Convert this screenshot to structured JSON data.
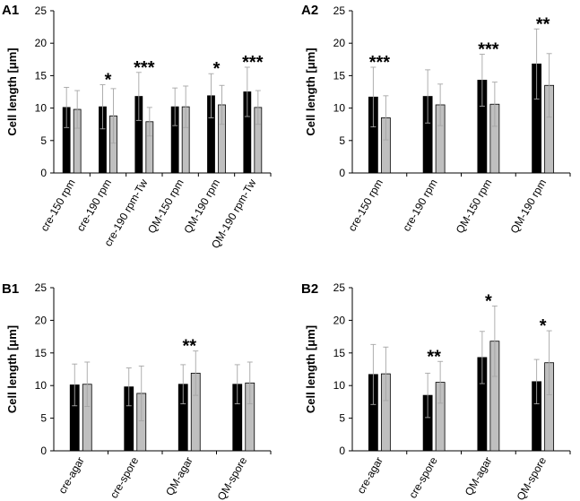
{
  "figure": {
    "ylabel_prefix": "Cell length [",
    "ylabel_unit": "μm",
    "ylabel_suffix": "]"
  },
  "colors": {
    "series1": "#000000",
    "series2": "#bfbfbf",
    "axis": "#000000",
    "errorbar": "#a6a6a6"
  },
  "chart_data": [
    {
      "panel": "A1",
      "type": "bar",
      "ylabel": "Cell length [μm]",
      "ylim": [
        0,
        25
      ],
      "yticks": [
        "0",
        "5",
        "10",
        "15",
        "20",
        "25"
      ],
      "categories": [
        "cre-150 rpm",
        "cre-190 rpm",
        "cre-190 rpm-Tw",
        "QM-150 rpm",
        "QM-190 rpm",
        "QM-190 rpm-Tw"
      ],
      "series": [
        {
          "name": "series1",
          "values": [
            10.1,
            10.2,
            11.8,
            10.2,
            11.9,
            12.5
          ],
          "errors": [
            3.1,
            3.4,
            3.7,
            2.9,
            3.4,
            3.8
          ]
        },
        {
          "name": "series2",
          "values": [
            9.8,
            8.8,
            7.9,
            10.2,
            10.5,
            10.1
          ],
          "errors": [
            2.9,
            4.2,
            2.2,
            3.2,
            3.0,
            2.6
          ]
        }
      ],
      "significance": [
        "",
        "*",
        "***",
        "",
        "*",
        "***"
      ]
    },
    {
      "panel": "A2",
      "type": "bar",
      "ylabel": "Cell length [μm]",
      "ylim": [
        0,
        25
      ],
      "yticks": [
        "0",
        "5",
        "10",
        "15",
        "20",
        "25"
      ],
      "categories": [
        "cre-150 rpm",
        "cre-190 rpm",
        "QM-150 rpm",
        "QM-190 rpm"
      ],
      "series": [
        {
          "name": "series1",
          "values": [
            11.7,
            11.8,
            14.3,
            16.8
          ],
          "errors": [
            4.6,
            4.1,
            4.0,
            5.4
          ]
        },
        {
          "name": "series2",
          "values": [
            8.5,
            10.5,
            10.6,
            13.5
          ],
          "errors": [
            3.4,
            3.2,
            3.4,
            4.9
          ]
        }
      ],
      "significance": [
        "***",
        "",
        "***",
        "**"
      ]
    },
    {
      "panel": "B1",
      "type": "bar",
      "ylabel": "Cell length [μm]",
      "ylim": [
        0,
        25
      ],
      "yticks": [
        "0",
        "5",
        "10",
        "15",
        "20",
        "25"
      ],
      "categories": [
        "cre-agar",
        "cre-spore",
        "QM-agar",
        "QM-spore"
      ],
      "series": [
        {
          "name": "series1",
          "values": [
            10.1,
            9.8,
            10.2,
            10.2
          ],
          "errors": [
            3.2,
            2.9,
            3.0,
            3.0
          ]
        },
        {
          "name": "series2",
          "values": [
            10.2,
            8.8,
            11.9,
            10.4
          ],
          "errors": [
            3.4,
            4.2,
            3.4,
            3.2
          ]
        }
      ],
      "significance": [
        "",
        "",
        "**",
        ""
      ]
    },
    {
      "panel": "B2",
      "type": "bar",
      "ylabel": "Cell length [μm]",
      "ylim": [
        0,
        25
      ],
      "yticks": [
        "0",
        "5",
        "10",
        "15",
        "20",
        "25"
      ],
      "categories": [
        "cre-agar",
        "cre-spore",
        "QM-agar",
        "QM-spore"
      ],
      "series": [
        {
          "name": "series1",
          "values": [
            11.7,
            8.5,
            14.3,
            10.6
          ],
          "errors": [
            4.6,
            3.4,
            4.0,
            3.4
          ]
        },
        {
          "name": "series2",
          "values": [
            11.8,
            10.5,
            16.8,
            13.5
          ],
          "errors": [
            4.1,
            3.2,
            5.4,
            4.9
          ]
        }
      ],
      "significance": [
        "",
        "**",
        "*",
        "*"
      ]
    }
  ]
}
